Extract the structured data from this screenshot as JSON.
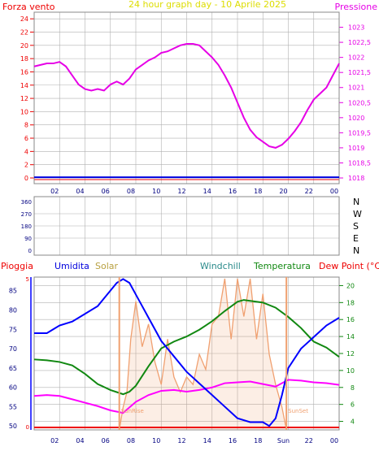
{
  "header": {
    "left_label": "Forza vento",
    "title": "24 hour graph day - 10 Aprile 2025",
    "right_label": "Pressione"
  },
  "colors": {
    "pressure": "#e600e6",
    "wind": "#0000dd",
    "temperature": "#118811",
    "dewpoint": "#ff00ff",
    "humidity": "#0000ff",
    "solar": "#f0a070",
    "rain": "#ee0000",
    "title": "#dddd00",
    "grid": "#b0b0b0"
  },
  "chart_data": [
    {
      "type": "line",
      "name": "pressure-wind",
      "left_axis": {
        "ticks": [
          0,
          2,
          4,
          6,
          8,
          10,
          12,
          14,
          16,
          18,
          20,
          22,
          24
        ],
        "range": [
          0,
          25
        ]
      },
      "right_axis": {
        "ticks": [
          "1018",
          "1018,5",
          "1019",
          "1019,5",
          "1020",
          "1020,5",
          "1021",
          "1021,5",
          "1022",
          "1022,5",
          "1023"
        ],
        "range": [
          1018,
          1023.5
        ]
      },
      "x_ticks": [
        "02",
        "04",
        "06",
        "08",
        "10",
        "12",
        "14",
        "16",
        "18",
        "20",
        "22",
        "00"
      ],
      "pressure": {
        "x": [
          0,
          0.5,
          1,
          1.5,
          2,
          2.5,
          3,
          3.5,
          4,
          4.5,
          5,
          5.5,
          6,
          6.5,
          7,
          7.5,
          8,
          8.5,
          9,
          9.5,
          10,
          10.5,
          11,
          11.5,
          12,
          12.5,
          13,
          13.5,
          14,
          14.5,
          15,
          15.5,
          16,
          16.5,
          17,
          17.5,
          18,
          18.5,
          19,
          19.5,
          20,
          20.5,
          21,
          21.5,
          22,
          22.5,
          23,
          23.5,
          24
        ],
        "y": [
          1021.7,
          1021.75,
          1021.8,
          1021.8,
          1021.85,
          1021.7,
          1021.4,
          1021.1,
          1020.95,
          1020.9,
          1020.95,
          1020.9,
          1021.1,
          1021.2,
          1021.1,
          1021.3,
          1021.6,
          1021.75,
          1021.9,
          1022.0,
          1022.15,
          1022.2,
          1022.3,
          1022.4,
          1022.45,
          1022.45,
          1022.4,
          1022.2,
          1022.0,
          1021.75,
          1021.4,
          1021.0,
          1020.5,
          1020.0,
          1019.6,
          1019.35,
          1019.2,
          1019.05,
          1019.0,
          1019.1,
          1019.3,
          1019.55,
          1019.85,
          1020.25,
          1020.6,
          1020.8,
          1021.0,
          1021.4,
          1021.8
        ]
      },
      "wind": {
        "x": [
          0,
          24
        ],
        "y": [
          0.1,
          0.1
        ]
      }
    },
    {
      "type": "scatter",
      "name": "wind-direction",
      "left_ticks": [
        "360",
        "270",
        "180",
        "90",
        "0"
      ],
      "right_ticks": [
        "N",
        "W",
        "S",
        "E",
        "N"
      ],
      "points": []
    },
    {
      "type": "line",
      "name": "weather",
      "legend": [
        "Pioggia",
        "Umidita",
        "Solar",
        "Windchill",
        "Temperatura",
        "Dew Point (°C)"
      ],
      "humidity_axis": {
        "ticks": [
          "50",
          "55",
          "60",
          "65",
          "70",
          "75",
          "80",
          "85"
        ],
        "range": [
          49,
          88.5
        ]
      },
      "rain_axis": {
        "ticks": [
          "0",
          "5"
        ]
      },
      "temp_axis": {
        "ticks": [
          "4",
          "6",
          "8",
          "10",
          "12",
          "14",
          "16",
          "18",
          "20"
        ],
        "range": [
          3,
          21
        ]
      },
      "x_ticks": [
        "02",
        "04",
        "06",
        "08",
        "10",
        "12",
        "14",
        "16",
        "18",
        "Sun",
        "22",
        "00"
      ],
      "sunrise": {
        "x": 6.7,
        "label": "SunRise"
      },
      "sunset": {
        "x": 19.85,
        "label": "SunSet"
      },
      "temperature": {
        "x": [
          0,
          1,
          2,
          3,
          4,
          5,
          6,
          7,
          7.5,
          8,
          9,
          10,
          11,
          12,
          13,
          14,
          15,
          16,
          16.5,
          17,
          18,
          19,
          20,
          21,
          22,
          23,
          24
        ],
        "y": [
          11.3,
          11.2,
          11.0,
          10.6,
          9.6,
          8.4,
          7.7,
          7.2,
          7.5,
          8.2,
          10.5,
          12.6,
          13.4,
          14.0,
          14.8,
          15.8,
          17.0,
          18.1,
          18.3,
          18.2,
          18.0,
          17.4,
          16.3,
          15.0,
          13.4,
          12.7,
          11.6
        ]
      },
      "dewpoint": {
        "x": [
          0,
          1,
          2,
          3,
          4,
          5,
          6,
          7,
          8,
          9,
          10,
          11,
          12,
          13,
          14,
          15,
          16,
          17,
          18,
          19,
          20,
          21,
          22,
          23,
          24
        ],
        "y": [
          7.0,
          7.1,
          7.0,
          6.6,
          6.2,
          5.8,
          5.3,
          5.0,
          6.3,
          7.1,
          7.6,
          7.7,
          7.5,
          7.7,
          8.0,
          8.5,
          8.6,
          8.7,
          8.4,
          8.1,
          8.9,
          8.8,
          8.6,
          8.5,
          8.3
        ]
      },
      "humidity": {
        "x": [
          0,
          1,
          1.5,
          2,
          3,
          4,
          5,
          5.5,
          6,
          6.5,
          7,
          7.5,
          8,
          8.5,
          9,
          10,
          11,
          12,
          13,
          14,
          15,
          16,
          17,
          18,
          18.5,
          19,
          19.5,
          20,
          21,
          22,
          23,
          24
        ],
        "y": [
          74,
          74,
          75,
          76,
          77,
          79,
          81,
          83,
          85,
          87,
          88,
          87,
          84,
          81,
          78,
          72,
          68,
          64,
          61,
          58,
          55,
          52,
          51,
          51,
          50,
          52,
          58,
          65,
          70,
          73,
          76,
          78
        ]
      },
      "solar": {
        "x": [
          6.7,
          7,
          7.3,
          7.6,
          8,
          8.5,
          9,
          9.5,
          10,
          10.5,
          11,
          11.5,
          12,
          12.5,
          13,
          13.5,
          14,
          14.5,
          15,
          15.5,
          16,
          16.5,
          17,
          17.5,
          18,
          18.5,
          19,
          19.5,
          19.85
        ],
        "y": [
          0,
          0.15,
          0.25,
          0.6,
          0.85,
          0.55,
          0.7,
          0.45,
          0.3,
          0.6,
          0.35,
          0.25,
          0.35,
          0.3,
          0.5,
          0.4,
          0.7,
          0.75,
          1.0,
          0.6,
          1.0,
          0.75,
          1.0,
          0.6,
          0.9,
          0.5,
          0.3,
          0.15,
          0
        ]
      },
      "rain": {
        "x": [
          0,
          24
        ],
        "y": [
          0,
          0
        ]
      }
    }
  ]
}
